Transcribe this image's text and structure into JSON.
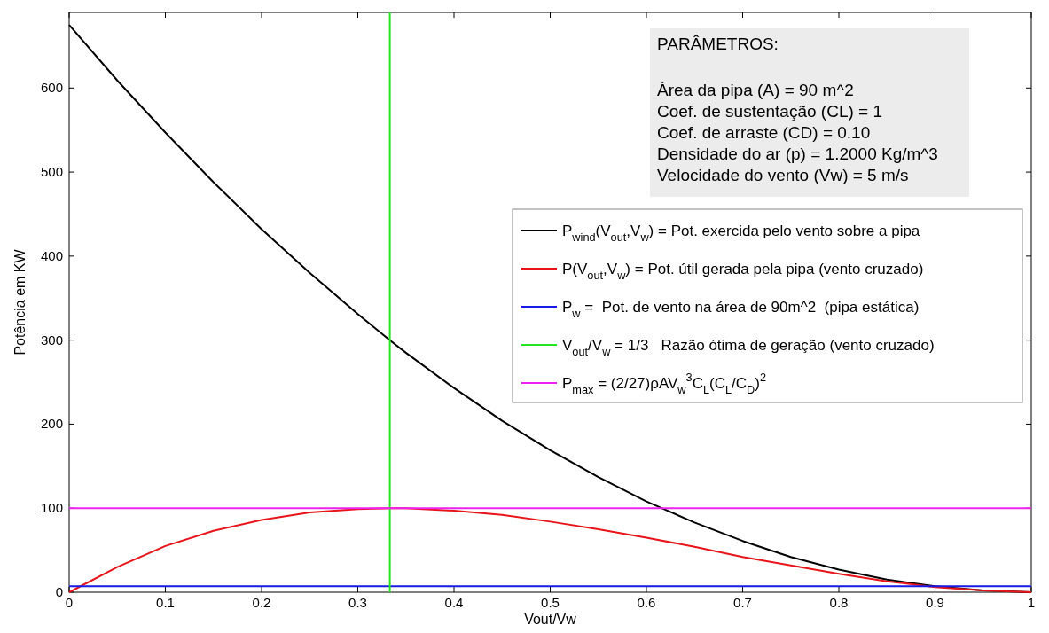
{
  "chart_data": {
    "type": "line",
    "xlabel": "Vout/Vw",
    "ylabel": "Potência em KW",
    "xlim": [
      0,
      1
    ],
    "xticks": [
      0,
      0.1,
      0.2,
      0.3,
      0.4,
      0.5,
      0.6,
      0.7,
      0.8,
      0.9,
      1
    ],
    "ylim": [
      0,
      690
    ],
    "yticks": [
      0,
      100,
      200,
      300,
      400,
      500,
      600
    ],
    "grid": false,
    "legend": "right",
    "line_style": "solid",
    "marker": "none",
    "annotations": [
      "PARÂMETROS:",
      "Área da pipa (A) = 90 m^2",
      "Coef. de sustentação (CL) = 1",
      "Coef. de arraste (CD) = 0.10",
      "Densidade do ar (p) = 1.2000 Kg/m^3",
      "Velocidade do vento (Vw) = 5 m/s"
    ],
    "series": [
      {
        "name": "P$_{wind}$(V$_{out}$,V$_{w}$) = Pot. exercida pelo vento sobre a pipa",
        "color": "#000000",
        "x": [
          0,
          0.05,
          0.1,
          0.15,
          0.2,
          0.25,
          0.3,
          0.3333,
          0.35,
          0.4,
          0.45,
          0.5,
          0.55,
          0.6,
          0.65,
          0.7,
          0.75,
          0.8,
          0.85,
          0.9,
          0.95,
          1
        ],
        "values": [
          675,
          609,
          547,
          488,
          432,
          380,
          331,
          300,
          285,
          243,
          204,
          169,
          137,
          108,
          83,
          61,
          42,
          27,
          15,
          7,
          2,
          0
        ]
      },
      {
        "name": "P(V$_{out}$,V$_{w}$) = Pot. útil gerada pela pipa (vento cruzado)",
        "color": "#e8141a",
        "x": [
          0,
          0.05,
          0.1,
          0.15,
          0.2,
          0.25,
          0.3,
          0.3333,
          0.35,
          0.4,
          0.45,
          0.5,
          0.55,
          0.6,
          0.65,
          0.7,
          0.75,
          0.8,
          0.85,
          0.9,
          0.95,
          1
        ],
        "values": [
          0,
          30,
          55,
          73,
          86,
          95,
          99,
          100,
          100,
          97,
          92,
          84,
          75,
          65,
          54,
          42,
          32,
          22,
          13,
          6,
          2,
          0
        ]
      },
      {
        "name": "P$_{w}$ =  Pot. de vento na área de 90m^2  (pipa estática)",
        "color": "#1a1ae6",
        "x": [
          0,
          1
        ],
        "values": [
          7,
          7
        ]
      },
      {
        "name": "V$_{out}$/V$_{w}$ = 1/3   Razão ótima de geração (vento cruzado)",
        "color": "#22e622",
        "x": [
          0.3333,
          0.3333
        ],
        "values": [
          0,
          690
        ]
      },
      {
        "name": "P$_{max}$ = (2/27)ρAV$_{w}$$^{3}$C$_{L}$(C$_{L}$/C$_{D}$)$^{2}$",
        "color": "#ee22ee",
        "x": [
          0,
          1
        ],
        "values": [
          100,
          100
        ]
      }
    ]
  }
}
